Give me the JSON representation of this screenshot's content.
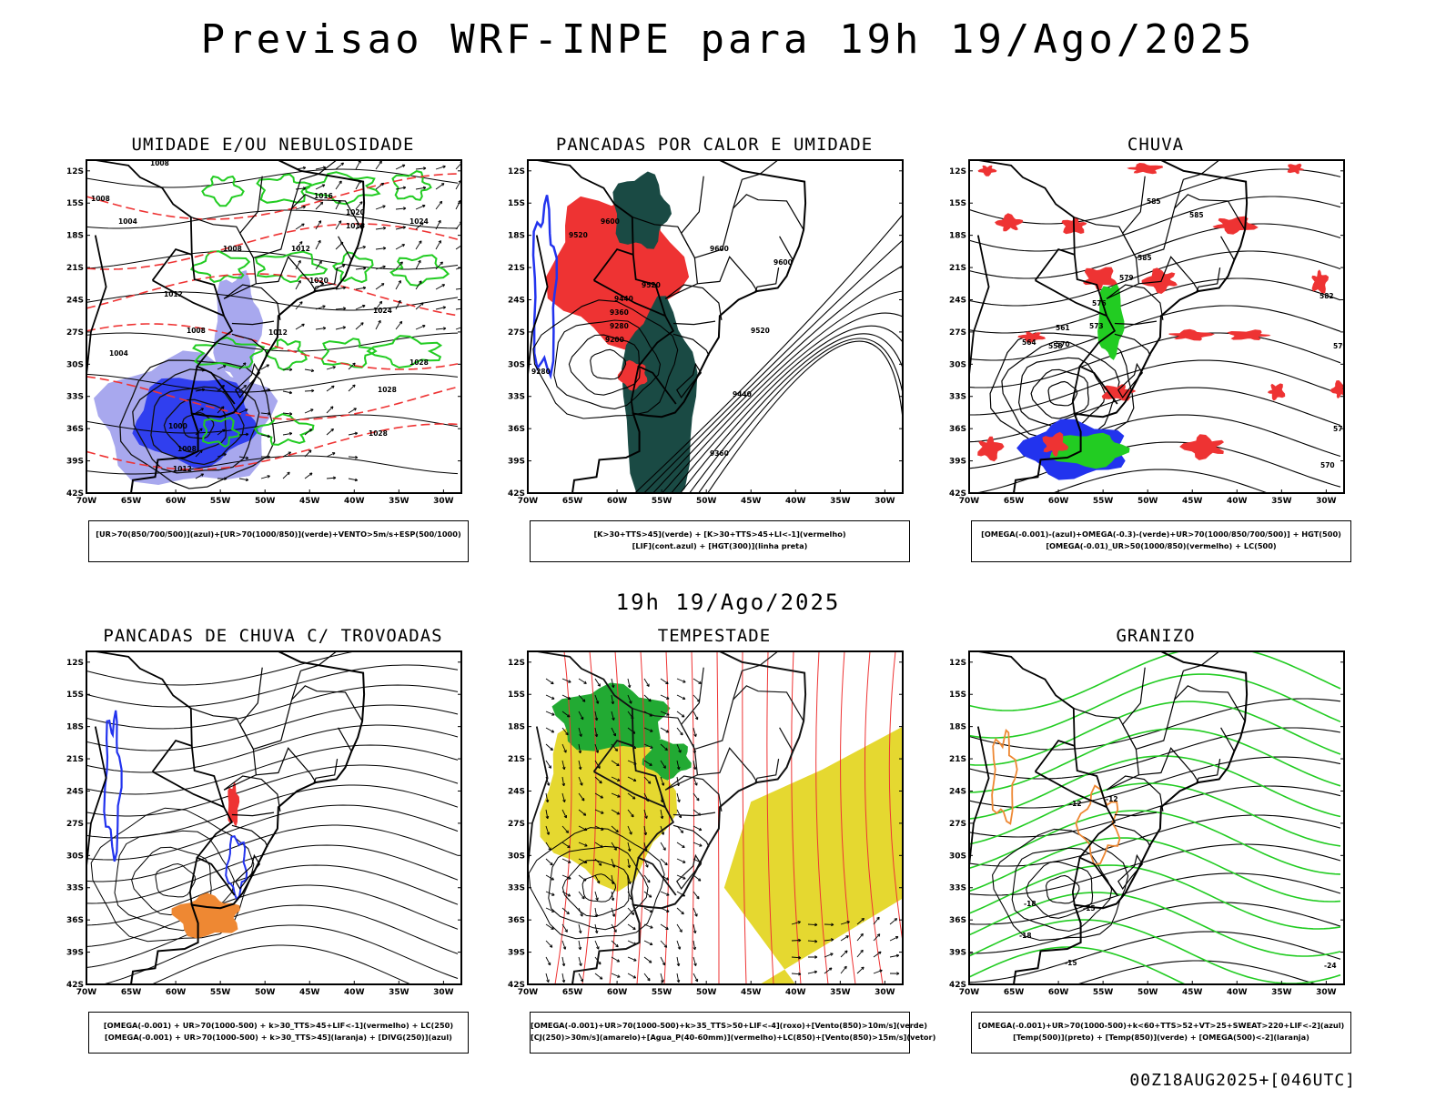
{
  "header": {
    "title": "Previsao WRF-INPE  para 19h 19/Ago/2025",
    "mid_title": "19h 19/Ago/2025",
    "footer": "00Z18AUG2025+[046UTC]"
  },
  "axes": {
    "lat_labels": [
      "12S",
      "15S",
      "18S",
      "21S",
      "24S",
      "27S",
      "30S",
      "33S",
      "36S",
      "39S",
      "42S"
    ],
    "lon_labels": [
      "70W",
      "65W",
      "60W",
      "55W",
      "50W",
      "45W",
      "40W",
      "35W",
      "30W"
    ]
  },
  "colors": {
    "blue": "#2233ee",
    "lightblue": "#9999ee",
    "green": "#22cc22",
    "red": "#ee3333",
    "orange": "#ee8833",
    "yellow": "#e5d830",
    "darkteal": "#1a4a44",
    "black": "#000000"
  },
  "panels": [
    {
      "id": "umidade",
      "title": "UMIDADE E/OU NEBULOSIDADE",
      "legend": [
        "[UR>70(850/700/500)](azul)+[UR>70(1000/850)](verde)+VENTO>5m/s+ESP(500/1000)"
      ],
      "labels": [
        "1008",
        "1008",
        "1004",
        "1016",
        "1020",
        "1012",
        "1008",
        "1012",
        "1020",
        "1024",
        "1028",
        "1028",
        "1012",
        "1008",
        "1004",
        "1000",
        "1008",
        "1012",
        "1016",
        "1024",
        "1028"
      ]
    },
    {
      "id": "pancadas-calor",
      "title": "PANCADAS POR CALOR E UMIDADE",
      "legend": [
        "[K>30+TTS>45](verde) + [K>30+TTS>45+LI<-1](vermelho)",
        "[LIF](cont.azul) + [HGT(300)](linha preta)"
      ],
      "labels": [
        "9600",
        "9520",
        "9600",
        "9600",
        "9520",
        "9440",
        "9360",
        "9280",
        "9200",
        "9280",
        "9520",
        "9440",
        "9360"
      ]
    },
    {
      "id": "chuva",
      "title": "CHUVA",
      "legend": [
        "[OMEGA(-0.001)-(azul)+OMEGA(-0.3)-(verde)+UR>70(1000/850/700/500)] + HGT(500)",
        "[OMEGA(-0.01)_UR>50(1000/850)(vermelho) + LC(500)"
      ],
      "labels": [
        "585",
        "585",
        "585",
        "582",
        "579",
        "576",
        "573",
        "570",
        "579",
        "576",
        "573",
        "570",
        "561",
        "558",
        "564"
      ]
    },
    {
      "id": "pancadas-trovoadas",
      "title": "PANCADAS DE CHUVA C/ TROVOADAS",
      "legend": [
        "[OMEGA(-0.001) + UR>70(1000-500) + k>30_TTS>45+LIF<-1](vermelho) + LC(250)",
        "[OMEGA(-0.001) + UR>70(1000-500) + k>30_TTS>45](laranja) + [DIVG(250)](azul)"
      ],
      "labels": []
    },
    {
      "id": "tempestade",
      "title": "TEMPESTADE",
      "legend": [
        "[OMEGA(-0.001)+UR>70(1000-500)+k>35_TTS>50+LIF<-4](roxo)+[Vento(850)>10m/s](verde)",
        "[CJ(250)>30m/s](amarelo)+[Agua_P(40-60mm)](vermelho)+LC(850)+[Vento(850)>15m/s](vetor)"
      ],
      "labels": []
    },
    {
      "id": "granizo",
      "title": "GRANIZO",
      "legend": [
        "[OMEGA(-0.001)+UR>70(1000-500)+k<60+TTS>52+VT>25+SWEAT>220+LIF<-2](azul)",
        "[Temp(500)](preto) + [Temp(850)](verde) + [OMEGA(500)<-2](laranja)"
      ],
      "labels": [
        "-12",
        "-15",
        "-18",
        "-12",
        "-15",
        "-18",
        "-24"
      ]
    }
  ]
}
